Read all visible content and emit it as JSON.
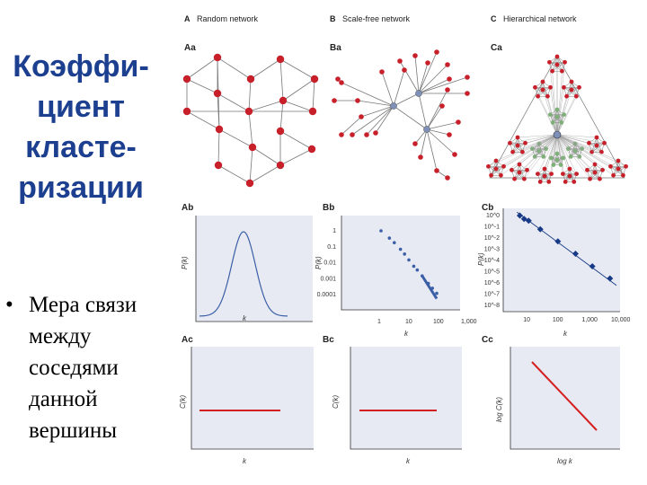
{
  "slide": {
    "title_lines": [
      "Коэффи-",
      "циент",
      "класте-",
      "ризации"
    ],
    "bullet": {
      "symbol": "•",
      "lines": [
        "Мера связи",
        "между",
        "соседями",
        "данной",
        "вершины"
      ]
    }
  },
  "colors": {
    "title": "#1c3f8f",
    "node_red": "#c8202a",
    "node_blue": "#7e8fb8",
    "node_green": "#7fb07a",
    "edge": "#777777",
    "plot_bg": "#e7eaf3",
    "curve_blue": "#3b5fa6",
    "line_red": "#d42020",
    "marker_blue": "#173a86"
  },
  "columns": [
    {
      "letter": "A",
      "name": "Random network"
    },
    {
      "letter": "B",
      "name": "Scale-free network"
    },
    {
      "letter": "C",
      "name": "Hierarchical network"
    }
  ],
  "panels": {
    "Aa": "Aa",
    "Ba": "Ba",
    "Ca": "Ca",
    "Ab": "Ab",
    "Bb": "Bb",
    "Cb": "Cb",
    "Ac": "Ac",
    "Bc": "Bc",
    "Cc": "Cc"
  },
  "axes": {
    "Ab": {
      "xlabel": "k",
      "ylabel": "P(k)"
    },
    "Bb": {
      "xlabel": "k",
      "ylabel": "P(k)",
      "xticks": [
        "1",
        "10",
        "100",
        "1,000"
      ],
      "yticks": [
        "1",
        "0.1",
        "0.01",
        "0.001",
        "0.0001"
      ]
    },
    "Cb": {
      "xlabel": "k",
      "ylabel": "P(k)",
      "xticks": [
        "10",
        "100",
        "1,000",
        "10,000"
      ],
      "yticks": [
        "10^0",
        "10^-1",
        "10^-2",
        "10^-3",
        "10^-4",
        "10^-5",
        "10^-6",
        "10^-7",
        "10^-8"
      ]
    },
    "Ac": {
      "xlabel": "k",
      "ylabel": "C(k)"
    },
    "Bc": {
      "xlabel": "k",
      "ylabel": "C(k)"
    },
    "Cc": {
      "xlabel": "log k",
      "ylabel": "log C(k)"
    }
  },
  "chart_data": [
    {
      "panel": "Ab",
      "type": "line",
      "description_shape": "bell",
      "x": [
        0,
        1,
        2,
        3,
        4,
        5,
        6,
        7,
        8,
        9,
        10
      ],
      "y": [
        0.01,
        0.03,
        0.1,
        0.3,
        0.7,
        1.0,
        0.7,
        0.3,
        0.1,
        0.03,
        0.01
      ]
    },
    {
      "panel": "Bb",
      "type": "scatter",
      "xscale": "log",
      "yscale": "log",
      "x": [
        1,
        2,
        3,
        5,
        7,
        10,
        15,
        20,
        30,
        50,
        70,
        100
      ],
      "y": [
        1,
        0.35,
        0.18,
        0.07,
        0.035,
        0.015,
        0.006,
        0.0035,
        0.0015,
        0.0005,
        0.00025,
        0.00012
      ]
    },
    {
      "panel": "Cb",
      "type": "scatter",
      "xscale": "log",
      "yscale": "log",
      "x": [
        5,
        7,
        10,
        25,
        100,
        400,
        1500,
        6000
      ],
      "y": [
        1,
        0.5,
        0.35,
        0.06,
        0.005,
        0.0004,
        3e-05,
        2.5e-06
      ]
    },
    {
      "panel": "Ac",
      "type": "line",
      "x": [
        0,
        1
      ],
      "y": [
        0.5,
        0.5
      ]
    },
    {
      "panel": "Bc",
      "type": "line",
      "x": [
        0,
        1
      ],
      "y": [
        0.5,
        0.5
      ]
    },
    {
      "panel": "Cc",
      "type": "line",
      "x": [
        0,
        1
      ],
      "y": [
        1,
        0
      ]
    }
  ]
}
